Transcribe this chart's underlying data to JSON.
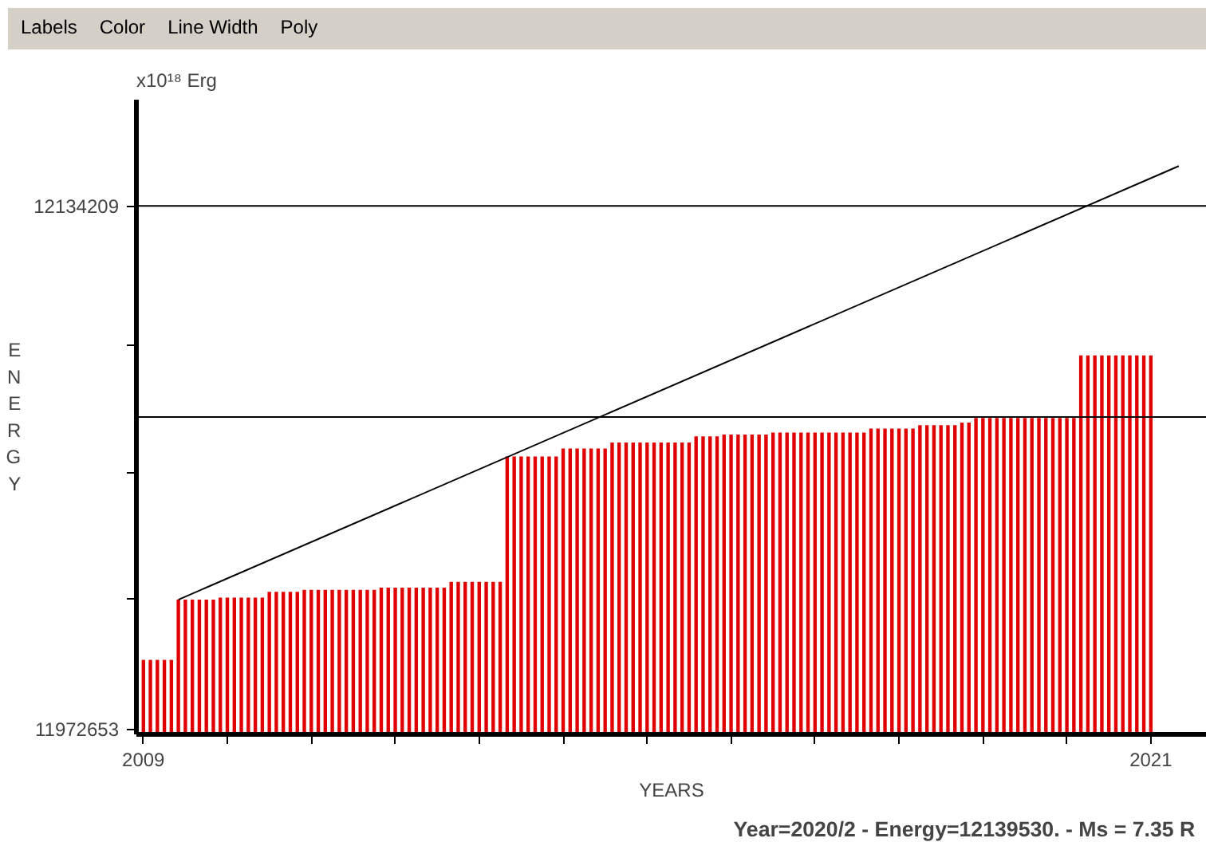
{
  "chart_data": {
    "type": "bar",
    "xlabel": "YEARS",
    "ylabel": "ENERGY",
    "annotations": [
      "Labels",
      "Color",
      "Line Width",
      "Poly",
      "x10¹⁸ Erg",
      "Year=2020/2 - Energy=12139530. - Ms = 7.35 R"
    ],
    "xlim": [
      "2008-12",
      "2021-09"
    ],
    "xticks": [
      {
        "value": "2009",
        "label": "2009"
      },
      {
        "value": "2010",
        "label": null
      },
      {
        "value": "2011",
        "label": null
      },
      {
        "value": "2012",
        "label": null
      },
      {
        "value": "2013",
        "label": null
      },
      {
        "value": "2014",
        "label": null
      },
      {
        "value": "2015",
        "label": null
      },
      {
        "value": "2016",
        "label": null
      },
      {
        "value": "2017",
        "label": null
      },
      {
        "value": "2018",
        "label": null
      },
      {
        "value": "2019",
        "label": null
      },
      {
        "value": "2020",
        "label": null
      },
      {
        "value": "2021",
        "label": "2021"
      }
    ],
    "ylim": [
      11971000,
      12167000
    ],
    "yticks": [
      11972653,
      {
        "value": 12013000,
        "label": null
      },
      {
        "value": 12052000,
        "label": null
      },
      {
        "value": 12091000,
        "label": null
      },
      12134209
    ],
    "grid": false,
    "ref_lines": [
      {
        "axis": "y",
        "value": 12134209,
        "color": "#000000"
      },
      {
        "axis": "y",
        "value": 12069000,
        "color": "#000000"
      }
    ],
    "series": [
      {
        "color": "#e00000",
        "x": [
          "2009-01",
          "2009-02",
          "2009-03",
          "2009-04",
          "2009-05",
          "2009-06",
          "2009-07",
          "2009-08",
          "2009-09",
          "2009-10",
          "2009-11",
          "2009-12",
          "2010-01",
          "2010-02",
          "2010-03",
          "2010-04",
          "2010-05",
          "2010-06",
          "2010-07",
          "2010-08",
          "2010-09",
          "2010-10",
          "2010-11",
          "2010-12",
          "2011-01",
          "2011-02",
          "2011-03",
          "2011-04",
          "2011-05",
          "2011-06",
          "2011-07",
          "2011-08",
          "2011-09",
          "2011-10",
          "2011-11",
          "2011-12",
          "2012-01",
          "2012-02",
          "2012-03",
          "2012-04",
          "2012-05",
          "2012-06",
          "2012-07",
          "2012-08",
          "2012-09",
          "2012-10",
          "2012-11",
          "2012-12",
          "2013-01",
          "2013-02",
          "2013-03",
          "2013-04",
          "2013-05",
          "2013-06",
          "2013-07",
          "2013-08",
          "2013-09",
          "2013-10",
          "2013-11",
          "2013-12",
          "2014-01",
          "2014-02",
          "2014-03",
          "2014-04",
          "2014-05",
          "2014-06",
          "2014-07",
          "2014-08",
          "2014-09",
          "2014-10",
          "2014-11",
          "2014-12",
          "2015-01",
          "2015-02",
          "2015-03",
          "2015-04",
          "2015-05",
          "2015-06",
          "2015-07",
          "2015-08",
          "2015-09",
          "2015-10",
          "2015-11",
          "2015-12",
          "2016-01",
          "2016-02",
          "2016-03",
          "2016-04",
          "2016-05",
          "2016-06",
          "2016-07",
          "2016-08",
          "2016-09",
          "2016-10",
          "2016-11",
          "2016-12",
          "2017-01",
          "2017-02",
          "2017-03",
          "2017-04",
          "2017-05",
          "2017-06",
          "2017-07",
          "2017-08",
          "2017-09",
          "2017-10",
          "2017-11",
          "2017-12",
          "2018-01",
          "2018-02",
          "2018-03",
          "2018-04",
          "2018-05",
          "2018-06",
          "2018-07",
          "2018-08",
          "2018-09",
          "2018-10",
          "2018-11",
          "2018-12",
          "2019-01",
          "2019-02",
          "2019-03",
          "2019-04",
          "2019-05",
          "2019-06",
          "2019-07",
          "2019-08",
          "2019-09",
          "2019-10",
          "2019-11",
          "2019-12",
          "2020-01",
          "2020-02",
          "2020-03",
          "2020-04",
          "2020-05",
          "2020-06",
          "2020-07",
          "2020-08",
          "2020-09",
          "2020-10",
          "2020-11",
          "2020-12",
          "2021-01"
        ],
        "values": [
          11994000,
          11994000,
          11994000,
          11994000,
          11994000,
          12012600,
          12012600,
          12012600,
          12012600,
          12012600,
          12012600,
          12013200,
          12013200,
          12013200,
          12013200,
          12013200,
          12013200,
          12013200,
          12015000,
          12015000,
          12015000,
          12015000,
          12015000,
          12015600,
          12015600,
          12015600,
          12015600,
          12015600,
          12015600,
          12015600,
          12015600,
          12015600,
          12015600,
          12015600,
          12016300,
          12016300,
          12016300,
          12016300,
          12016300,
          12016300,
          12016300,
          12016300,
          12016300,
          12016300,
          12018100,
          12018100,
          12018100,
          12018100,
          12018100,
          12018100,
          12018100,
          12018100,
          12056800,
          12056800,
          12056800,
          12056800,
          12056800,
          12056800,
          12056800,
          12056800,
          12059300,
          12059300,
          12059300,
          12059300,
          12059300,
          12059300,
          12059300,
          12061100,
          12061100,
          12061100,
          12061100,
          12061100,
          12061100,
          12061100,
          12061100,
          12061100,
          12061100,
          12061100,
          12061100,
          12063000,
          12063000,
          12063000,
          12063000,
          12063600,
          12063600,
          12063600,
          12063600,
          12063600,
          12063600,
          12063600,
          12064200,
          12064200,
          12064200,
          12064200,
          12064200,
          12064200,
          12064200,
          12064200,
          12064200,
          12064200,
          12064200,
          12064200,
          12064200,
          12064200,
          12065400,
          12065400,
          12065400,
          12065400,
          12065400,
          12065400,
          12065400,
          12066500,
          12066500,
          12066500,
          12066500,
          12066500,
          12066500,
          12067300,
          12067300,
          12068700,
          12068700,
          12068700,
          12068700,
          12068700,
          12068700,
          12068700,
          12068700,
          12068700,
          12068700,
          12068700,
          12068700,
          12068700,
          12068700,
          12068700,
          12088000,
          12088000,
          12088000,
          12088000,
          12088000,
          12088000,
          12088000,
          12088000,
          12088000,
          12088000,
          12088000
        ]
      },
      {
        "type": "line",
        "color": "#000000",
        "x": [
          "2009-06",
          "2021-05"
        ],
        "values": [
          12012600,
          12146500
        ]
      }
    ]
  }
}
